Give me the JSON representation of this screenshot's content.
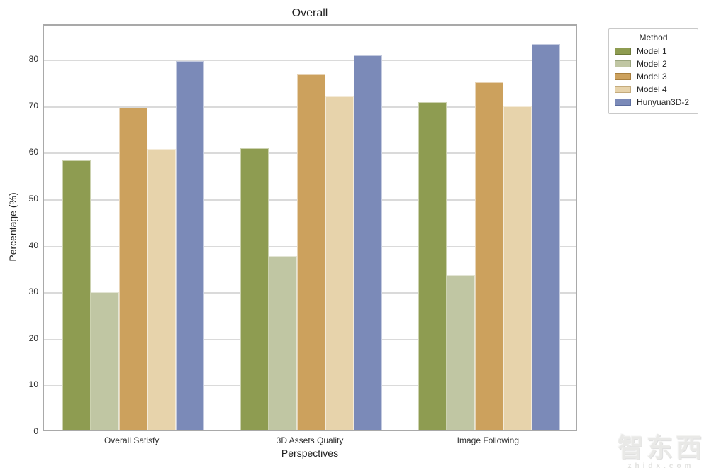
{
  "chart_data": {
    "type": "bar",
    "title": "Overall",
    "xlabel": "Perspectives",
    "ylabel": "Percentage (%)",
    "ylim": [
      0,
      87.5
    ],
    "yticks": [
      0,
      10,
      20,
      30,
      40,
      50,
      60,
      70,
      80
    ],
    "grid": "horizontal-light-gray",
    "legend_title": "Method",
    "legend_position": "outside-top-right",
    "categories": [
      "Overall Satisfy",
      "3D Assets Quality",
      "Image Following"
    ],
    "series": [
      {
        "name": "Model 1",
        "color": "#8E9C51",
        "edge": "#6d7a3a",
        "values": [
          58.0,
          60.5,
          70.4
        ]
      },
      {
        "name": "Model 2",
        "color": "#C0C6A3",
        "edge": "#9aa57e",
        "values": [
          29.5,
          37.4,
          33.3
        ]
      },
      {
        "name": "Model 3",
        "color": "#CCA15D",
        "edge": "#a87f3e",
        "values": [
          69.2,
          76.3,
          74.7
        ]
      },
      {
        "name": "Model 4",
        "color": "#E7D3AB",
        "edge": "#c4ab7d",
        "values": [
          60.3,
          71.6,
          69.5
        ]
      },
      {
        "name": "Hunyuan3D-2",
        "color": "#7B8AB8",
        "edge": "#5c6d9e",
        "values": [
          79.3,
          80.5,
          83.0
        ]
      }
    ]
  },
  "watermark": {
    "logo": "智东西",
    "subtext": "zhidx.com"
  }
}
